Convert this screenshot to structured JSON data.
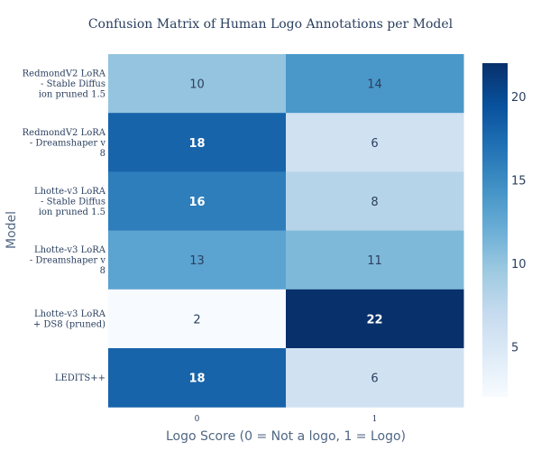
{
  "chart_data": {
    "type": "heatmap",
    "title": "Confusion Matrix of Human Logo Annotations per Model",
    "xlabel": "Logo Score (0 = Not a logo, 1 = Logo)",
    "ylabel": "Model",
    "x_categories": [
      "0",
      "1"
    ],
    "y_categories": [
      [
        "RedmondV2 LoRA",
        "- Stable Diffus",
        "ion pruned 1.5"
      ],
      [
        "RedmondV2 LoRA",
        "- Dreamshaper v",
        "8"
      ],
      [
        "Lhotte-v3 LoRA",
        "- Stable Diffus",
        "ion pruned 1.5"
      ],
      [
        "Lhotte-v3 LoRA",
        "- Dreamshaper v",
        "8"
      ],
      [
        "Lhotte-v3 LoRA",
        "+ DS8 (pruned)"
      ],
      [
        "LEDITS++"
      ]
    ],
    "values": [
      [
        10,
        14
      ],
      [
        18,
        6
      ],
      [
        16,
        8
      ],
      [
        13,
        11
      ],
      [
        2,
        22
      ],
      [
        18,
        6
      ]
    ],
    "colorscale": "Blues",
    "color_min": 2,
    "color_max": 22,
    "colorbar_ticks": [
      5,
      10,
      15,
      20
    ],
    "colors": {
      "low": "#f7fbff",
      "high": "#08306b",
      "text": "#2a3f5f"
    }
  }
}
